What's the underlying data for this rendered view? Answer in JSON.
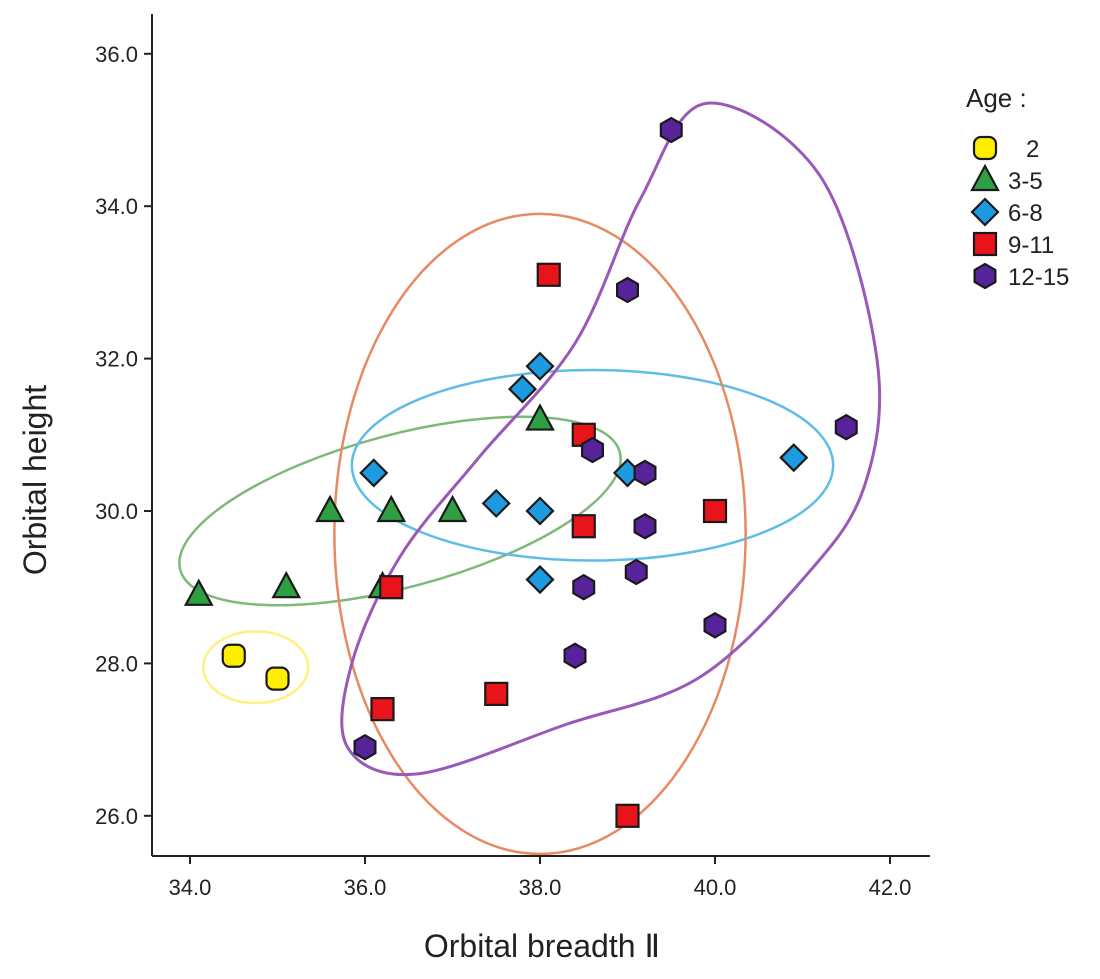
{
  "chart_data": {
    "type": "scatter",
    "title": "",
    "xlabel": "Orbital breadth Ⅱ",
    "ylabel": "Orbital height",
    "xlim": [
      33.7,
      42.5
    ],
    "ylim": [
      25.5,
      36.5
    ],
    "xticks": [
      {
        "value": 34,
        "label": "34.0"
      },
      {
        "value": 36,
        "label": "36.0"
      },
      {
        "value": 38,
        "label": "38.0"
      },
      {
        "value": 40,
        "label": "40.0"
      },
      {
        "value": 42,
        "label": "42.0"
      }
    ],
    "yticks": [
      {
        "value": 26,
        "label": "26.0"
      },
      {
        "value": 28,
        "label": "28.0"
      },
      {
        "value": 30,
        "label": "30.0"
      },
      {
        "value": 32,
        "label": "32.0"
      },
      {
        "value": 34,
        "label": "34.0"
      },
      {
        "value": 36,
        "label": "36.0"
      }
    ],
    "grid": false,
    "legend": {
      "title": "Age :",
      "position": "top-right"
    },
    "series": [
      {
        "name": "2",
        "marker": "circle",
        "color": "#ffee00",
        "points": [
          [
            34.5,
            28.1
          ],
          [
            35.0,
            27.8
          ]
        ]
      },
      {
        "name": "3-5",
        "marker": "triangle",
        "color": "#2ea043",
        "points": [
          [
            34.1,
            28.9
          ],
          [
            35.1,
            29.0
          ],
          [
            35.6,
            30.0
          ],
          [
            36.3,
            30.0
          ],
          [
            37.0,
            30.0
          ],
          [
            36.2,
            29.0
          ],
          [
            38.0,
            31.2
          ]
        ]
      },
      {
        "name": "6-8",
        "marker": "diamond",
        "color": "#1e9be0",
        "points": [
          [
            36.1,
            30.5
          ],
          [
            37.5,
            30.1
          ],
          [
            37.8,
            31.6
          ],
          [
            38.0,
            31.9
          ],
          [
            38.0,
            30.0
          ],
          [
            38.0,
            29.1
          ],
          [
            39.0,
            30.5
          ],
          [
            40.9,
            30.7
          ]
        ]
      },
      {
        "name": "9-11",
        "marker": "square",
        "color": "#e8141a",
        "points": [
          [
            38.1,
            33.1
          ],
          [
            38.5,
            31.0
          ],
          [
            38.5,
            29.8
          ],
          [
            40.0,
            30.0
          ],
          [
            36.3,
            29.0
          ],
          [
            36.2,
            27.4
          ],
          [
            37.5,
            27.6
          ],
          [
            39.0,
            26.0
          ]
        ]
      },
      {
        "name": "12-15",
        "marker": "hexagon",
        "color": "#56239a",
        "points": [
          [
            39.5,
            35.0
          ],
          [
            39.0,
            32.9
          ],
          [
            38.6,
            30.8
          ],
          [
            39.2,
            30.5
          ],
          [
            39.2,
            29.8
          ],
          [
            38.5,
            29.0
          ],
          [
            39.1,
            29.2
          ],
          [
            41.5,
            31.1
          ],
          [
            38.4,
            28.1
          ],
          [
            40.0,
            28.5
          ],
          [
            36.0,
            26.9
          ]
        ]
      }
    ],
    "ellipses": [
      {
        "group": "2",
        "color": "#fff080",
        "cx": 34.75,
        "cy": 27.95,
        "rx": 0.6,
        "ry": 0.47,
        "angle": 0
      },
      {
        "group": "3-5",
        "color": "#7fb97a",
        "cx": 36.4,
        "cy": 30.0,
        "rx": 2.6,
        "ry": 1.0,
        "angle": -15
      },
      {
        "group": "6-8",
        "color": "#5fbde5",
        "cx": 38.6,
        "cy": 30.6,
        "rx": 2.75,
        "ry": 1.25,
        "angle": 0
      },
      {
        "group": "9-11",
        "color": "#e78a62",
        "cx": 38.0,
        "cy": 29.7,
        "rx": 2.35,
        "ry": 4.2,
        "angle": 0
      }
    ],
    "hulls": [
      {
        "group": "12-15",
        "color": "#9a59b8",
        "points": [
          [
            39.9,
            35.35
          ],
          [
            41.2,
            34.4
          ],
          [
            41.85,
            32.0
          ],
          [
            41.7,
            30.3
          ],
          [
            41.0,
            29.1
          ],
          [
            39.8,
            27.8
          ],
          [
            38.3,
            27.2
          ],
          [
            36.6,
            26.55
          ],
          [
            35.8,
            26.9
          ],
          [
            35.85,
            28.0
          ],
          [
            36.4,
            29.4
          ],
          [
            37.3,
            30.7
          ],
          [
            38.4,
            32.2
          ],
          [
            39.15,
            34.1
          ]
        ]
      }
    ]
  }
}
